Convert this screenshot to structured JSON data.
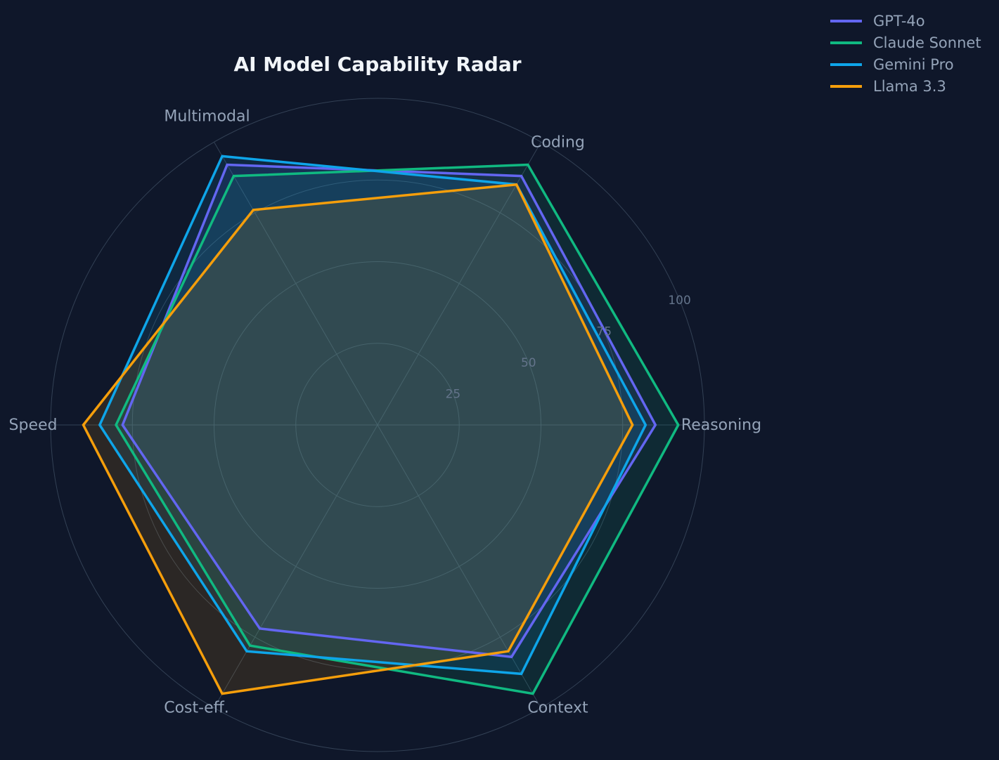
{
  "chart_data": {
    "type": "radar",
    "title": "AI Model Capability Radar",
    "axes": [
      "Reasoning",
      "Coding",
      "Multimodal",
      "Speed",
      "Cost-eff.",
      "Context"
    ],
    "rmax": 100,
    "ticks": [
      25,
      50,
      75,
      100
    ],
    "grid": true,
    "legend_position": "top-right",
    "series": [
      {
        "name": "GPT-4o",
        "color": "#6366f1",
        "values": [
          85,
          88,
          92,
          78,
          72,
          82
        ]
      },
      {
        "name": "Claude Sonnet",
        "color": "#10b981",
        "values": [
          92,
          92,
          88,
          80,
          78,
          95
        ]
      },
      {
        "name": "Gemini Pro",
        "color": "#0ea5e9",
        "values": [
          82,
          85,
          95,
          85,
          80,
          88
        ]
      },
      {
        "name": "Llama 3.3",
        "color": "#f59e0b",
        "values": [
          78,
          85,
          76,
          90,
          95,
          80
        ]
      }
    ]
  }
}
